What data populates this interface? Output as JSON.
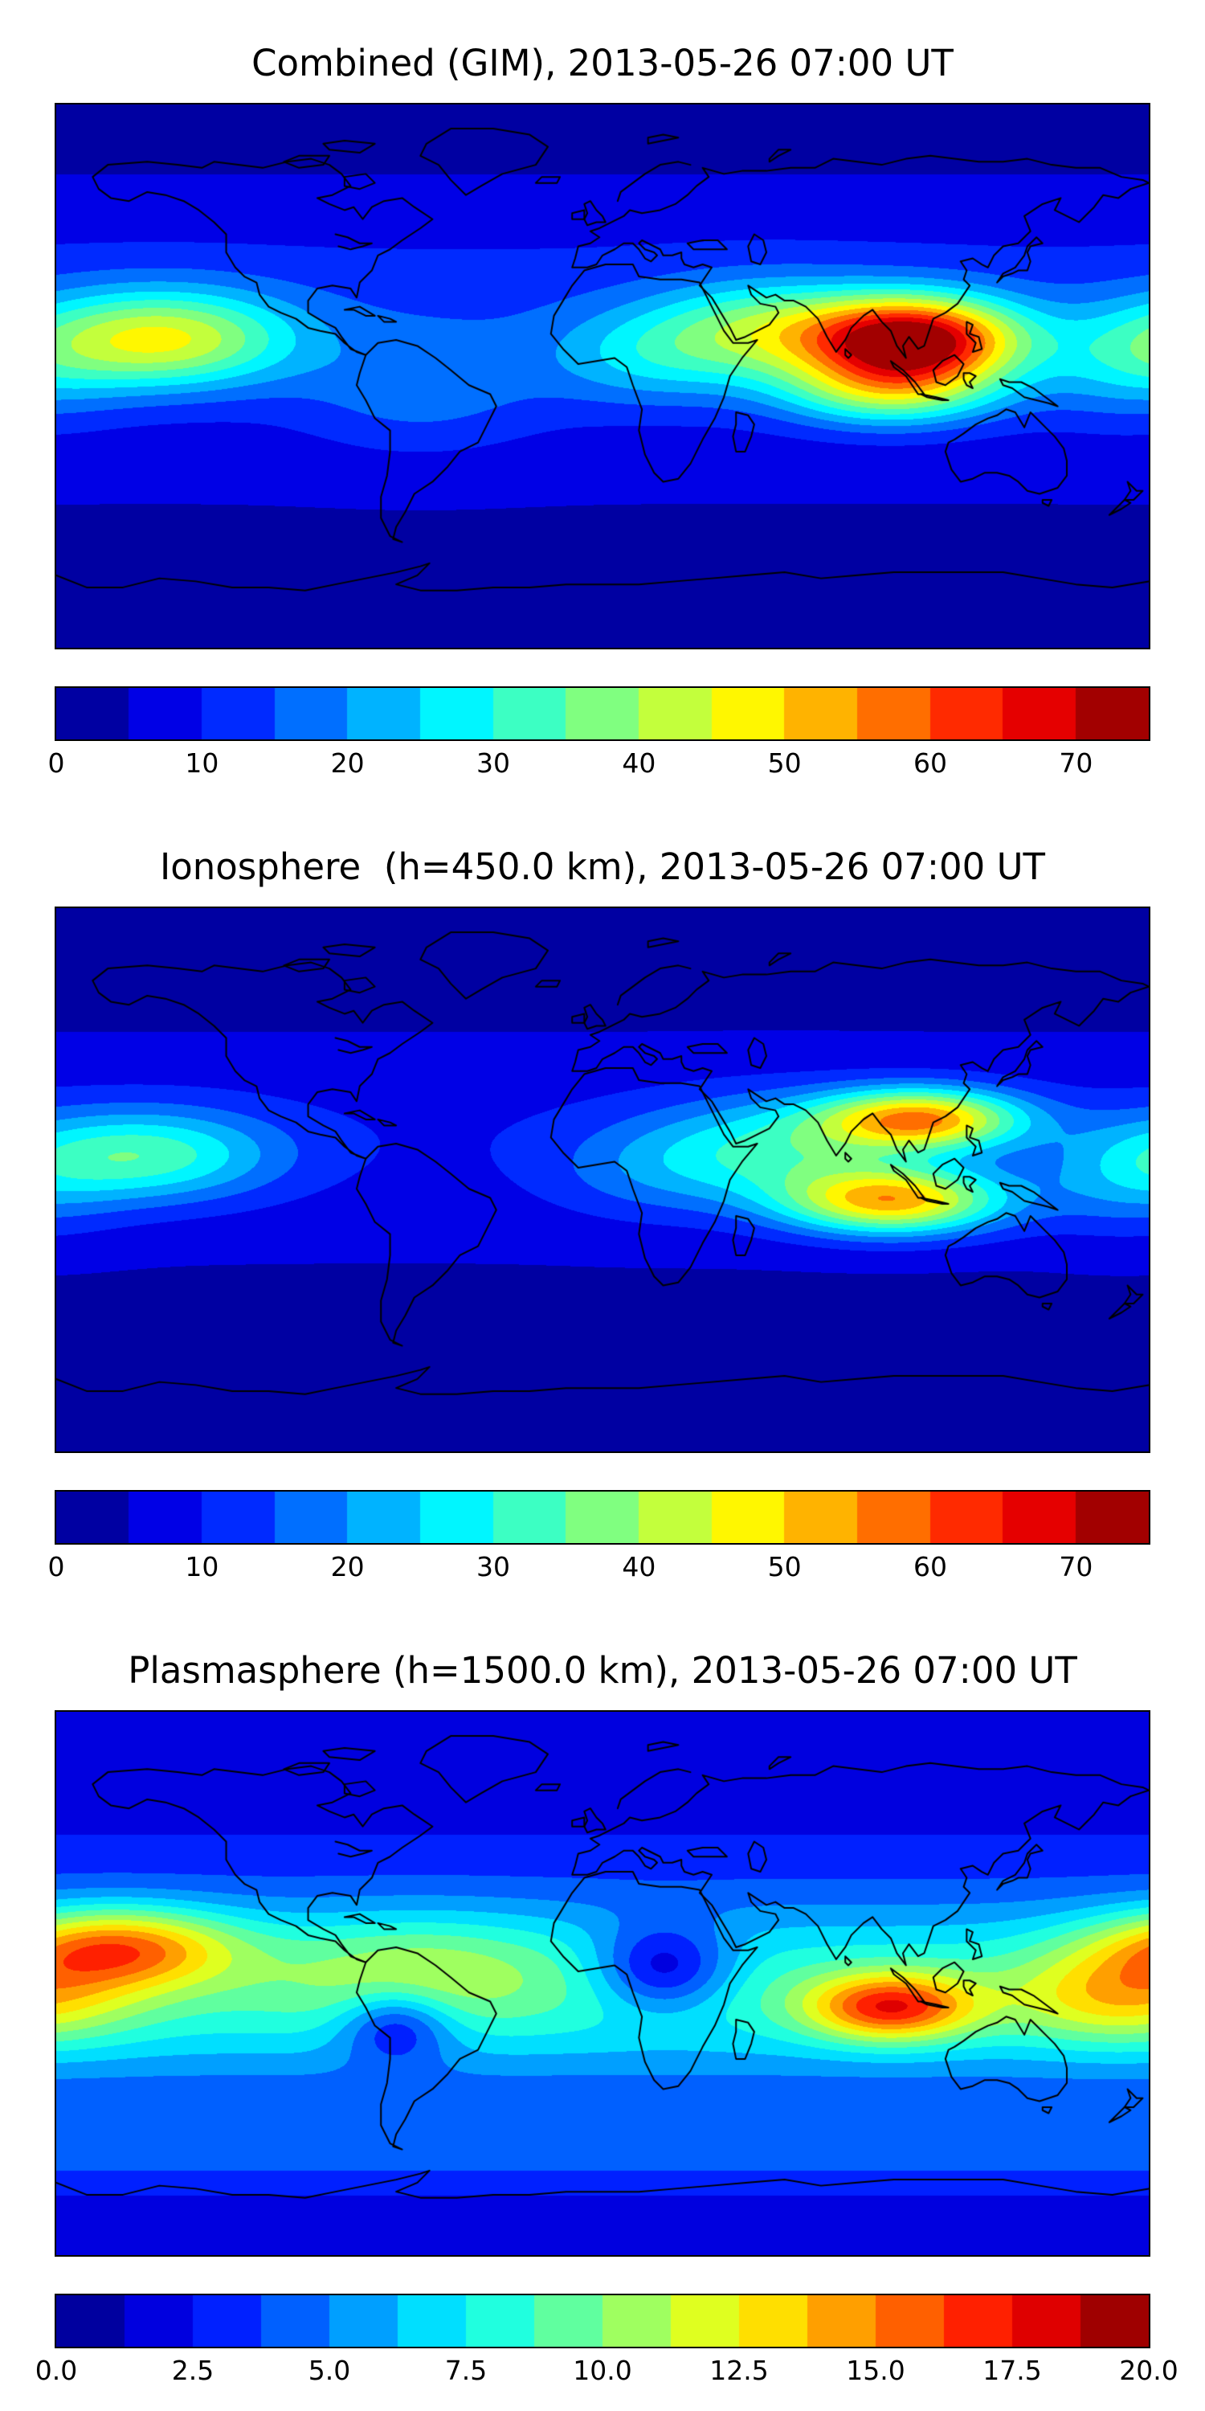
{
  "figure": {
    "background": "#ffffff",
    "coastline_color": "#000000",
    "frame_color": "#000000",
    "colormap": "jet"
  },
  "chart_data": [
    {
      "type": "heatmap",
      "title": "Combined (GIM), 2013-05-26 07:00 UT",
      "datetime_label": "2013-05-26 07:00 UT",
      "projection": "equirectangular",
      "x_range": [
        -180,
        180
      ],
      "y_range": [
        -90,
        90
      ],
      "grid": false,
      "colormap": "jet",
      "levels": {
        "min": 0,
        "max": 75,
        "step": 5
      },
      "colorbar_ticks": [
        "0",
        "10",
        "20",
        "30",
        "40",
        "50",
        "60",
        "70"
      ],
      "colorbar_tick_values": [
        0,
        10,
        20,
        30,
        40,
        50,
        60,
        70
      ],
      "legend_position": "bottom",
      "field": {
        "base": 2,
        "bands": [
          {
            "lat": 8,
            "amp": 6,
            "slat": 60
          },
          {
            "lat": 25,
            "amp": 5,
            "slat": 30
          }
        ],
        "blobs": [
          {
            "lon": 103,
            "lat": 12,
            "amp": 62,
            "slon": 34,
            "slat": 14
          },
          {
            "lon": 95,
            "lat": -5,
            "amp": 28,
            "slon": 36,
            "slat": 12
          },
          {
            "lon": 55,
            "lat": 15,
            "amp": 24,
            "slon": 38,
            "slat": 16
          },
          {
            "lon": 15,
            "lat": 6,
            "amp": 13,
            "slon": 35,
            "slat": 16
          },
          {
            "lon": -145,
            "lat": 12,
            "amp": 34,
            "slon": 42,
            "slat": 16
          },
          {
            "lon": -60,
            "lat": -5,
            "amp": 9,
            "slon": 40,
            "slat": 20
          },
          {
            "lon": 172,
            "lat": 3,
            "amp": 11,
            "slon": 30,
            "slat": 18
          }
        ]
      }
    },
    {
      "type": "heatmap",
      "title": "Ionosphere  (h=450.0 km), 2013-05-26 07:00 UT",
      "datetime_label": "2013-05-26 07:00 UT",
      "projection": "equirectangular",
      "x_range": [
        -180,
        180
      ],
      "y_range": [
        -90,
        90
      ],
      "grid": false,
      "colormap": "jet",
      "levels": {
        "min": 0,
        "max": 75,
        "step": 5
      },
      "colorbar_ticks": [
        "0",
        "10",
        "20",
        "30",
        "40",
        "50",
        "60",
        "70"
      ],
      "colorbar_tick_values": [
        0,
        10,
        20,
        30,
        40,
        50,
        60,
        70
      ],
      "legend_position": "bottom",
      "field": {
        "base": 1.5,
        "bands": [
          {
            "lat": 5,
            "amp": 5,
            "slat": 50
          },
          {
            "lat": 20,
            "amp": 3,
            "slat": 30
          }
        ],
        "blobs": [
          {
            "lon": 105,
            "lat": 20,
            "amp": 45,
            "slon": 33,
            "slat": 10
          },
          {
            "lon": 96,
            "lat": -7,
            "amp": 44,
            "slon": 36,
            "slat": 11
          },
          {
            "lon": 58,
            "lat": 10,
            "amp": 20,
            "slon": 42,
            "slat": 17
          },
          {
            "lon": 15,
            "lat": 3,
            "amp": 8,
            "slon": 35,
            "slat": 16
          },
          {
            "lon": -150,
            "lat": 8,
            "amp": 24,
            "slon": 42,
            "slat": 15
          },
          {
            "lon": 172,
            "lat": 0,
            "amp": 10,
            "slon": 30,
            "slat": 18
          }
        ]
      }
    },
    {
      "type": "heatmap",
      "title": "Plasmasphere (h=1500.0 km), 2013-05-26 07:00 UT",
      "datetime_label": "2013-05-26 07:00 UT",
      "projection": "equirectangular",
      "x_range": [
        -180,
        180
      ],
      "y_range": [
        -90,
        90
      ],
      "grid": false,
      "colormap": "jet",
      "levels": {
        "min": 0,
        "max": 20,
        "step": 1.25
      },
      "colorbar_ticks": [
        "0.0",
        "2.5",
        "5.0",
        "7.5",
        "10.0",
        "12.5",
        "15.0",
        "17.5",
        "20.0"
      ],
      "colorbar_tick_values": [
        0,
        2.5,
        5,
        7.5,
        10,
        12.5,
        15,
        17.5,
        20
      ],
      "legend_position": "bottom",
      "field": {
        "base": 2,
        "bands": [
          {
            "lat": -2,
            "amp": 6.5,
            "slat": 32
          },
          {
            "lat": -55,
            "amp": 2.2,
            "slat": 12
          }
        ],
        "blobs": [
          {
            "lon": -160,
            "lat": 12,
            "amp": 8.5,
            "slon": 38,
            "slat": 13
          },
          {
            "lon": 95,
            "lat": -8,
            "amp": 9.5,
            "slon": 27,
            "slat": 11
          },
          {
            "lon": 170,
            "lat": -5,
            "amp": 5,
            "slon": 35,
            "slat": 15
          },
          {
            "lon": -60,
            "lat": 5,
            "amp": 3,
            "slon": 45,
            "slat": 18
          },
          {
            "lon": 20,
            "lat": 5,
            "amp": -6,
            "slon": 22,
            "slat": 14
          },
          {
            "lon": -68,
            "lat": -14,
            "amp": -5,
            "slon": 18,
            "slat": 12
          }
        ]
      }
    }
  ]
}
